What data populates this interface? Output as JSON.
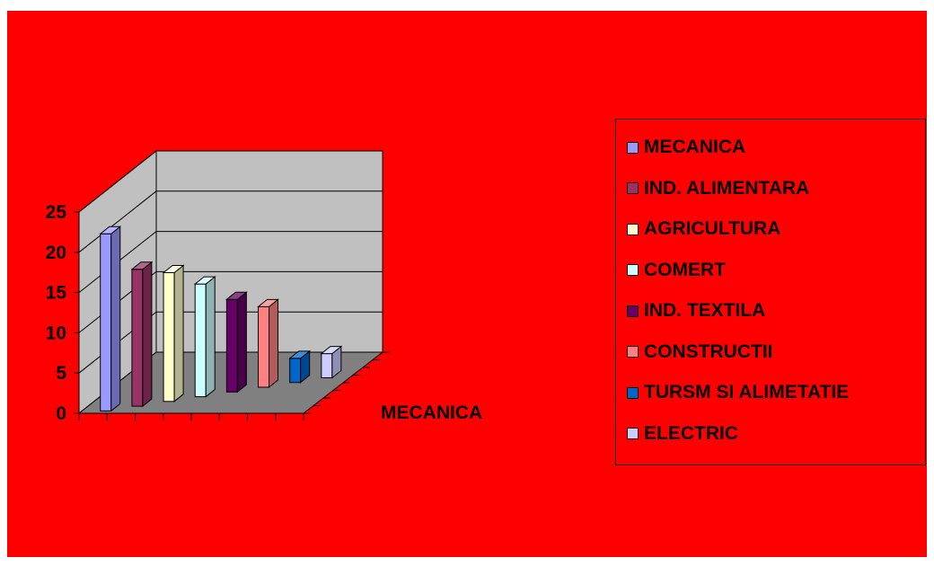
{
  "chart_data": {
    "type": "bar",
    "title": "",
    "xlabel": "",
    "ylabel": "",
    "categories": [
      "MECANICA"
    ],
    "ylim": [
      0,
      25
    ],
    "yticks": [
      "0",
      "5",
      "10",
      "15",
      "20",
      "25"
    ],
    "grid": true,
    "legend_position": "right",
    "series": [
      {
        "name": "MECANICA",
        "values": [
          22
        ],
        "color": "#9999ff"
      },
      {
        "name": "IND. ALIMENTARA",
        "values": [
          17
        ],
        "color": "#993366"
      },
      {
        "name": "AGRICULTURA",
        "values": [
          16
        ],
        "color": "#ffffcc"
      },
      {
        "name": "COMERT",
        "values": [
          14
        ],
        "color": "#ccffff"
      },
      {
        "name": "IND. TEXTILA",
        "values": [
          11.5
        ],
        "color": "#660066"
      },
      {
        "name": "CONSTRUCTII",
        "values": [
          10
        ],
        "color": "#ff8080"
      },
      {
        "name": "TURSM SI ALIMETATIE",
        "values": [
          3
        ],
        "color": "#0066cc"
      },
      {
        "name": "ELECTRIC",
        "values": [
          3
        ],
        "color": "#ccccff"
      }
    ]
  },
  "colors": {
    "background": "#ff0000",
    "wall": "#c0c0c0",
    "floor": "#808080"
  }
}
